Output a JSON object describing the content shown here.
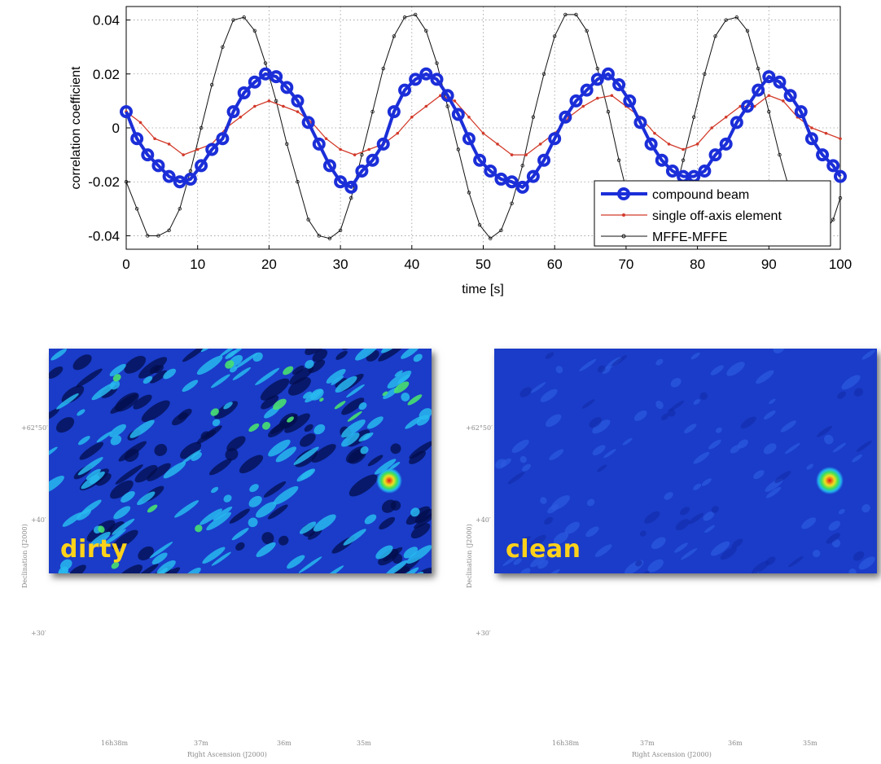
{
  "chart_data": {
    "type": "line",
    "xlabel": "time [s]",
    "ylabel": "correlation coefficient",
    "xlim": [
      0,
      100
    ],
    "ylim": [
      -0.045,
      0.045
    ],
    "xticks": [
      0,
      10,
      20,
      30,
      40,
      50,
      60,
      70,
      80,
      90,
      100
    ],
    "xtick_labels": [
      "0",
      "10",
      "20",
      "30",
      "40",
      "50",
      "60",
      "70",
      "80",
      "90",
      "100"
    ],
    "yticks": [
      -0.04,
      -0.02,
      0,
      0.02,
      0.04
    ],
    "ytick_labels": [
      "-0.04",
      "-0.02",
      "0",
      "0.02",
      "0.04"
    ],
    "grid": true,
    "legend_position": "bottom-right",
    "series": [
      {
        "name": "compound beam",
        "color": "#1b2ed8",
        "marker": "circle",
        "x": [
          0,
          1.5,
          3,
          4.5,
          6,
          7.5,
          9,
          10.5,
          12,
          13.5,
          15,
          16.5,
          18,
          19.5,
          21,
          22.5,
          24,
          25.5,
          27,
          28.5,
          30,
          31.5,
          33,
          34.5,
          36,
          37.5,
          39,
          40.5,
          42,
          43.5,
          45,
          46.5,
          48,
          49.5,
          51,
          52.5,
          54,
          55.5,
          57,
          58.5,
          60,
          61.5,
          63,
          64.5,
          66,
          67.5,
          69,
          70.5,
          72,
          73.5,
          75,
          76.5,
          78,
          79.5,
          81,
          82.5,
          84,
          85.5,
          87,
          88.5,
          90,
          91.5,
          93,
          94.5,
          96,
          97.5,
          99,
          100
        ],
        "y": [
          0.006,
          -0.004,
          -0.01,
          -0.014,
          -0.018,
          -0.02,
          -0.019,
          -0.014,
          -0.008,
          -0.004,
          0.006,
          0.013,
          0.017,
          0.02,
          0.019,
          0.015,
          0.01,
          0.002,
          -0.006,
          -0.014,
          -0.02,
          -0.022,
          -0.016,
          -0.012,
          -0.006,
          0.006,
          0.014,
          0.018,
          0.02,
          0.018,
          0.012,
          0.005,
          -0.004,
          -0.012,
          -0.016,
          -0.019,
          -0.02,
          -0.022,
          -0.018,
          -0.012,
          -0.004,
          0.004,
          0.01,
          0.014,
          0.018,
          0.02,
          0.016,
          0.01,
          0.002,
          -0.006,
          -0.012,
          -0.016,
          -0.018,
          -0.018,
          -0.016,
          -0.01,
          -0.006,
          0.002,
          0.008,
          0.014,
          0.019,
          0.017,
          0.012,
          0.006,
          -0.004,
          -0.01,
          -0.014,
          -0.018
        ]
      },
      {
        "name": "single off-axis element",
        "color": "#d23a2a",
        "marker": "dot",
        "x": [
          0,
          2,
          4,
          6,
          8,
          10,
          12,
          14,
          16,
          18,
          20,
          22,
          24,
          26,
          28,
          30,
          32,
          34,
          36,
          38,
          40,
          42,
          44,
          46,
          48,
          50,
          52,
          54,
          56,
          58,
          60,
          62,
          64,
          66,
          68,
          70,
          72,
          74,
          76,
          78,
          80,
          82,
          84,
          86,
          88,
          90,
          92,
          94,
          96,
          98,
          100
        ],
        "y": [
          0.006,
          0.002,
          -0.004,
          -0.006,
          -0.01,
          -0.008,
          -0.006,
          0.0,
          0.004,
          0.008,
          0.01,
          0.008,
          0.006,
          0.002,
          -0.004,
          -0.008,
          -0.01,
          -0.008,
          -0.006,
          -0.002,
          0.004,
          0.008,
          0.012,
          0.01,
          0.004,
          -0.002,
          -0.006,
          -0.01,
          -0.01,
          -0.006,
          -0.002,
          0.004,
          0.008,
          0.011,
          0.012,
          0.008,
          0.004,
          -0.002,
          -0.006,
          -0.008,
          -0.006,
          0.0,
          0.004,
          0.008,
          0.008,
          0.012,
          0.01,
          0.004,
          0.0,
          -0.002,
          -0.004
        ]
      },
      {
        "name": "MFFE-MFFE",
        "color": "#111111",
        "marker": "small-circle",
        "x": [
          0,
          1.5,
          3,
          4.5,
          6,
          7.5,
          9,
          10.5,
          12,
          13.5,
          15,
          16.5,
          18,
          19.5,
          21,
          22.5,
          24,
          25.5,
          27,
          28.5,
          30,
          31.5,
          33,
          34.5,
          36,
          37.5,
          39,
          40.5,
          42,
          43.5,
          45,
          46.5,
          48,
          49.5,
          51,
          52.5,
          54,
          55.5,
          57,
          58.5,
          60,
          61.5,
          63,
          64.5,
          66,
          67.5,
          69,
          70.5,
          72,
          73.5,
          75,
          76.5,
          78,
          79.5,
          81,
          82.5,
          84,
          85.5,
          87,
          88.5,
          90,
          91.5,
          93,
          94.5,
          96,
          97.5,
          99,
          100
        ],
        "y": [
          -0.02,
          -0.03,
          -0.04,
          -0.04,
          -0.038,
          -0.03,
          -0.016,
          0.0,
          0.016,
          0.03,
          0.04,
          0.041,
          0.036,
          0.024,
          0.01,
          -0.006,
          -0.02,
          -0.034,
          -0.04,
          -0.041,
          -0.038,
          -0.026,
          -0.01,
          0.006,
          0.022,
          0.034,
          0.041,
          0.042,
          0.036,
          0.024,
          0.008,
          -0.008,
          -0.024,
          -0.036,
          -0.041,
          -0.038,
          -0.028,
          -0.014,
          0.004,
          0.02,
          0.034,
          0.042,
          0.042,
          0.036,
          0.022,
          0.006,
          -0.012,
          -0.028,
          -0.038,
          -0.042,
          -0.038,
          -0.028,
          -0.012,
          0.004,
          0.02,
          0.034,
          0.04,
          0.041,
          0.036,
          0.022,
          0.006,
          -0.01,
          -0.024,
          -0.034,
          -0.04,
          -0.04,
          -0.034,
          -0.026
        ]
      }
    ]
  },
  "maps": [
    {
      "label": "dirty",
      "ylabel": "Declination (J2000)",
      "xlabel": "Right Ascension (J2000)",
      "ytick_labels": [
        "+62°50′",
        "+40′",
        "+30′"
      ],
      "xtick_labels": [
        "16h38m",
        "37m",
        "36m",
        "35m"
      ]
    },
    {
      "label": "clean",
      "ylabel": "Declination (J2000)",
      "xlabel": "Right Ascension (J2000)",
      "ytick_labels": [
        "+62°50′",
        "+40′",
        "+30′"
      ],
      "xtick_labels": [
        "16h38m",
        "37m",
        "36m",
        "35m"
      ]
    }
  ],
  "colors": {
    "map_background": "#1a3cc8",
    "colormap": [
      "#000c5a",
      "#1a3cc8",
      "#22b7f0",
      "#3de05a",
      "#f0e020",
      "#e01818"
    ],
    "label_color": "#ffd21a"
  }
}
